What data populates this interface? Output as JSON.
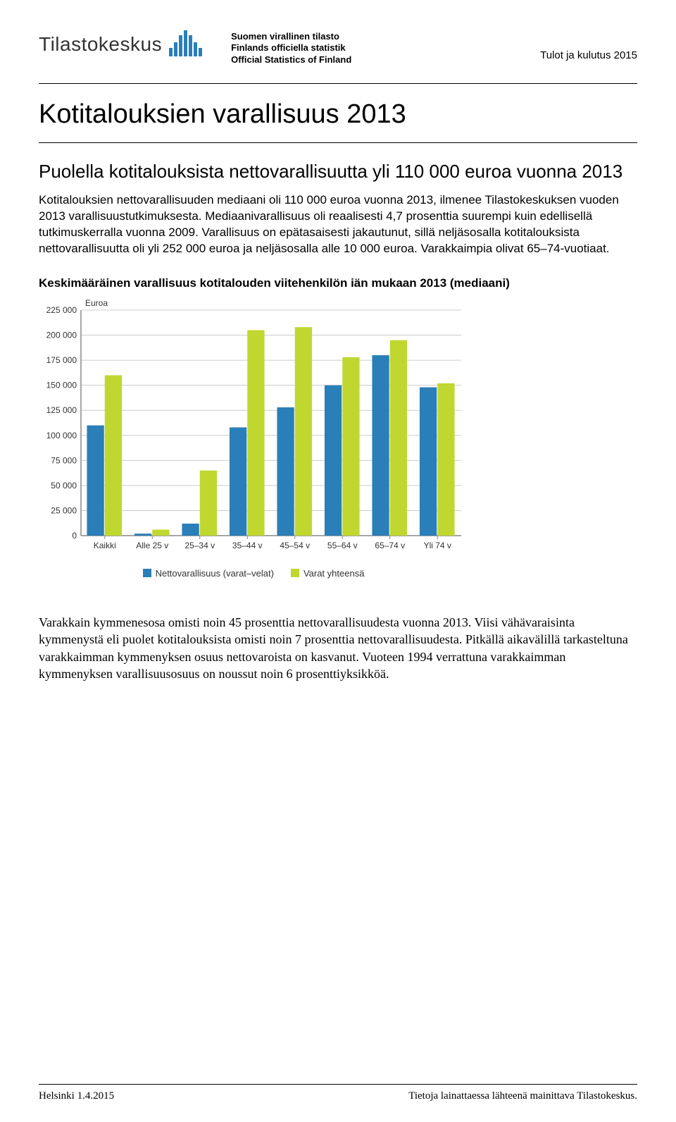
{
  "header": {
    "brand": "Tilastokeskus",
    "svt_fi": "Suomen virallinen tilasto",
    "svt_sv": "Finlands officiella statistik",
    "svt_en": "Official Statistics of Finland",
    "top_right": "Tulot ja kulutus 2015"
  },
  "title": "Kotitalouksien varallisuus 2013",
  "subtitle": "Puolella kotitalouksista nettovarallisuutta yli 110 000 euroa vuonna 2013",
  "paragraph1": "Kotitalouksien nettovarallisuuden mediaani oli 110 000 euroa vuonna 2013, ilmenee Tilastokeskuksen vuoden 2013 varallisuustutkimuksesta. Mediaanivarallisuus oli reaalisesti 4,7 prosenttia suurempi kuin edellisellä tutkimuskerralla vuonna 2009. Varallisuus on epätasaisesti jakautunut, sillä neljäsosalla kotitalouksista nettovarallisuutta oli yli 252 000 euroa ja neljäsosalla alle 10 000 euroa. Varakkaimpia olivat 65–74-vuotiaat.",
  "chart": {
    "title": "Keskimääräinen varallisuus kotitalouden viitehenkilön iän mukaan 2013 (mediaani)",
    "type": "grouped-bar",
    "unit_label": "Euroa",
    "categories": [
      "Kaikki",
      "Alle 25 v",
      "25–34 v",
      "35–44 v",
      "45–54 v",
      "55–64 v",
      "65–74 v",
      "Yli 74 v"
    ],
    "series": [
      {
        "name": "Nettovarallisuus (varat–velat)",
        "color": "#2a7fb8",
        "values": [
          110000,
          2000,
          12000,
          108000,
          128000,
          150000,
          180000,
          148000
        ]
      },
      {
        "name": "Varat yhteensä",
        "color": "#c0d730",
        "values": [
          160000,
          6000,
          65000,
          205000,
          208000,
          178000,
          195000,
          152000
        ]
      }
    ],
    "ylim": [
      0,
      225000
    ],
    "ytick_step": 25000,
    "ytick_labels": [
      "0",
      "25 000",
      "50 000",
      "75 000",
      "100 000",
      "125 000",
      "150 000",
      "175 000",
      "200 000",
      "225 000"
    ],
    "background_color": "#ffffff",
    "grid_color": "#cccccc",
    "axis_color": "#888888",
    "label_fontsize": 12,
    "bar_group_width": 0.75
  },
  "paragraph2": "Varakkain kymmenesosa omisti noin 45 prosenttia nettovarallisuudesta vuonna 2013. Viisi vähävaraisinta kymmenystä eli puolet kotitalouksista omisti noin 7 prosenttia nettovarallisuudesta. Pitkällä aikavälillä tarkasteltuna varakkaimman kymmenyksen osuus nettovaroista on kasvanut. Vuoteen 1994 verrattuna varakkaimman kymmenyksen varallisuusosuus on noussut noin 6 prosenttiyksikköä.",
  "footer": {
    "left": "Helsinki 1.4.2015",
    "right": "Tietoja lainattaessa lähteenä mainittava Tilastokeskus."
  }
}
